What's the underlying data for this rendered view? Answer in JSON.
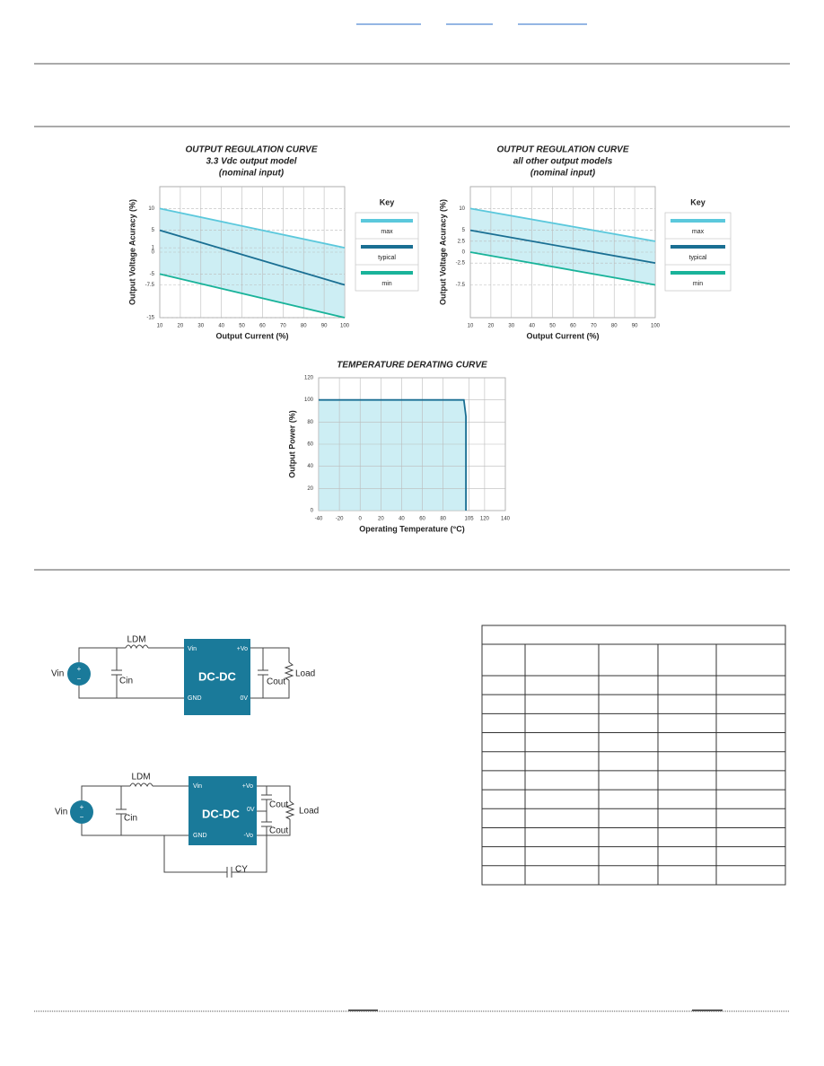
{
  "chart_data": [
    {
      "type": "line",
      "title": "OUTPUT REGULATION CURVE",
      "subtitle": [
        "3.3 Vdc output model",
        "(nominal input)"
      ],
      "x": [
        10,
        100
      ],
      "series": [
        {
          "name": "max",
          "color": "#5bc8dc",
          "values": [
            10,
            1
          ]
        },
        {
          "name": "typical",
          "color": "#1a6f93",
          "values": [
            5,
            -7.5
          ]
        },
        {
          "name": "min",
          "color": "#19b39a",
          "values": [
            -5,
            -15
          ]
        }
      ],
      "xlim": [
        10,
        100
      ],
      "ylim": [
        -15,
        15
      ],
      "xticks": [
        10,
        20,
        30,
        40,
        50,
        60,
        70,
        80,
        90,
        100
      ],
      "yticks": [
        10,
        5,
        1,
        0,
        -5,
        -7.5,
        -15
      ],
      "xlabel": "Output Current (%)",
      "ylabel": "Output Voltage Acuracy (%)",
      "legend_title": "Key",
      "band_color": "#cdeef4",
      "grid": true
    },
    {
      "type": "line",
      "title": "OUTPUT REGULATION CURVE",
      "subtitle": [
        "all other output models",
        "(nominal input)"
      ],
      "x": [
        10,
        100
      ],
      "series": [
        {
          "name": "max",
          "color": "#5bc8dc",
          "values": [
            10,
            2.5
          ]
        },
        {
          "name": "typical",
          "color": "#1a6f93",
          "values": [
            5,
            -2.5
          ]
        },
        {
          "name": "min",
          "color": "#19b39a",
          "values": [
            0,
            -7.5
          ]
        }
      ],
      "xlim": [
        10,
        100
      ],
      "ylim": [
        -15,
        15
      ],
      "xticks": [
        10,
        20,
        30,
        40,
        50,
        60,
        70,
        80,
        90,
        100
      ],
      "yticks": [
        10,
        5,
        2.5,
        0,
        -2.5,
        -7.5
      ],
      "xlabel": "Output Current (%)",
      "ylabel": "Output Voltage Acuracy (%)",
      "legend_title": "Key",
      "band_color": "#cdeef4",
      "grid": true
    },
    {
      "type": "area",
      "title": "TEMPERATURE DERATING CURVE",
      "x": [
        -40,
        100,
        102,
        102
      ],
      "values": [
        100,
        100,
        85,
        0
      ],
      "color": "#1a6f93",
      "area_color": "#cdeef4",
      "xlim": [
        -40,
        140
      ],
      "ylim": [
        0,
        120
      ],
      "xticks": [
        -40,
        -20,
        0,
        20,
        40,
        60,
        80,
        105,
        120,
        140
      ],
      "yticks": [
        0,
        20,
        40,
        60,
        80,
        100,
        120
      ],
      "xlabel": "Operating Temperature (°C)",
      "ylabel": "Output Power (%)",
      "grid": true
    }
  ],
  "circuits": [
    {
      "labels": [
        "LDM",
        "Vin",
        "Cin",
        "Vin",
        "+Vo",
        "DC-DC",
        "GND",
        "0V",
        "Cout",
        "Load"
      ]
    },
    {
      "labels": [
        "LDM",
        "Vin",
        "Cin",
        "Vin",
        "+Vo",
        "DC-DC",
        "0V",
        "GND",
        "-Vo",
        "Cout",
        "Cout",
        "Load",
        "CY"
      ]
    }
  ]
}
